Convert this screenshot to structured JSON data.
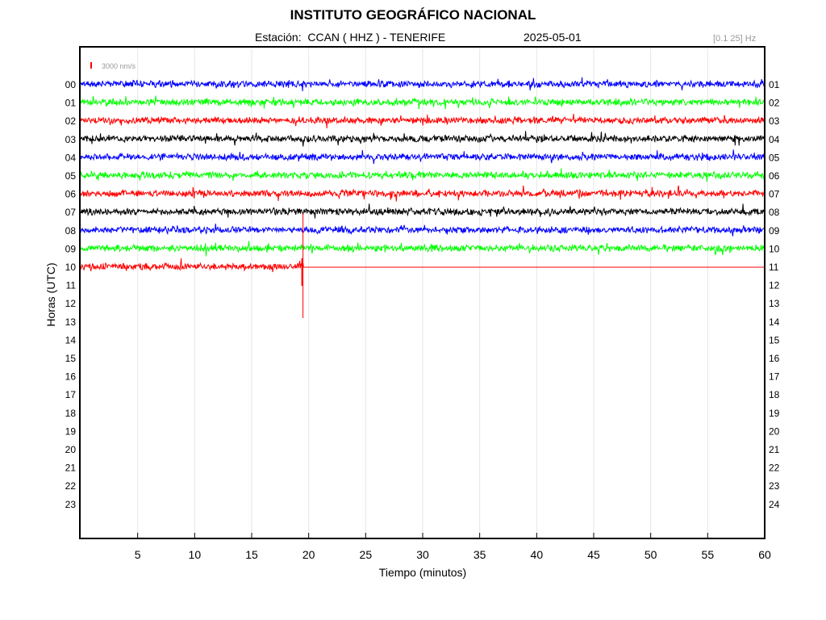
{
  "header": {
    "title": "INSTITUTO GEOGRÁFICO NACIONAL",
    "station_line": "Estación:  CCAN ( HHZ ) - TENERIFE",
    "date": "2025-05-01",
    "filter": "[0.1 25] Hz"
  },
  "chart_data": {
    "type": "line",
    "subtype": "helicorder",
    "xlabel": "Tiempo (minutos)",
    "ylabel": "Horas (UTC)",
    "xlim": [
      0,
      60
    ],
    "x_ticks": [
      5,
      10,
      15,
      20,
      25,
      30,
      35,
      40,
      45,
      50,
      55,
      60
    ],
    "left_hour_labels": [
      "00",
      "01",
      "02",
      "03",
      "04",
      "05",
      "06",
      "07",
      "08",
      "09",
      "10",
      "11",
      "12",
      "13",
      "14",
      "15",
      "16",
      "17",
      "18",
      "19",
      "20",
      "21",
      "22",
      "23"
    ],
    "right_hour_labels": [
      "01",
      "02",
      "03",
      "04",
      "05",
      "06",
      "07",
      "08",
      "09",
      "10",
      "11",
      "12",
      "13",
      "14",
      "15",
      "16",
      "17",
      "18",
      "19",
      "20",
      "21",
      "22",
      "23",
      "24"
    ],
    "scale_bar": {
      "label": "3000 nm/s",
      "color": "#ff0000"
    },
    "trace_colors": [
      "#0000ff",
      "#00ff00",
      "#ff0000",
      "#000000"
    ],
    "grid": "vertical",
    "traces": [
      {
        "hour": "00",
        "color": "#0000ff",
        "start_min": 0,
        "end_min": 60
      },
      {
        "hour": "01",
        "color": "#00ff00",
        "start_min": 0,
        "end_min": 60
      },
      {
        "hour": "02",
        "color": "#ff0000",
        "start_min": 0,
        "end_min": 60
      },
      {
        "hour": "03",
        "color": "#000000",
        "start_min": 0,
        "end_min": 60
      },
      {
        "hour": "04",
        "color": "#0000ff",
        "start_min": 0,
        "end_min": 60
      },
      {
        "hour": "05",
        "color": "#00ff00",
        "start_min": 0,
        "end_min": 60
      },
      {
        "hour": "06",
        "color": "#ff0000",
        "start_min": 0,
        "end_min": 60
      },
      {
        "hour": "07",
        "color": "#000000",
        "start_min": 0,
        "end_min": 60
      },
      {
        "hour": "08",
        "color": "#0000ff",
        "start_min": 0,
        "end_min": 60
      },
      {
        "hour": "09",
        "color": "#00ff00",
        "start_min": 0,
        "end_min": 60
      },
      {
        "hour": "10",
        "color": "#ff0000",
        "start_min": 0,
        "end_min": 19.6
      }
    ],
    "data_gap": {
      "hour": "10",
      "from_min": 19.6,
      "to_min": 60
    },
    "spike": {
      "hour": "10",
      "minute": 19.5
    }
  }
}
